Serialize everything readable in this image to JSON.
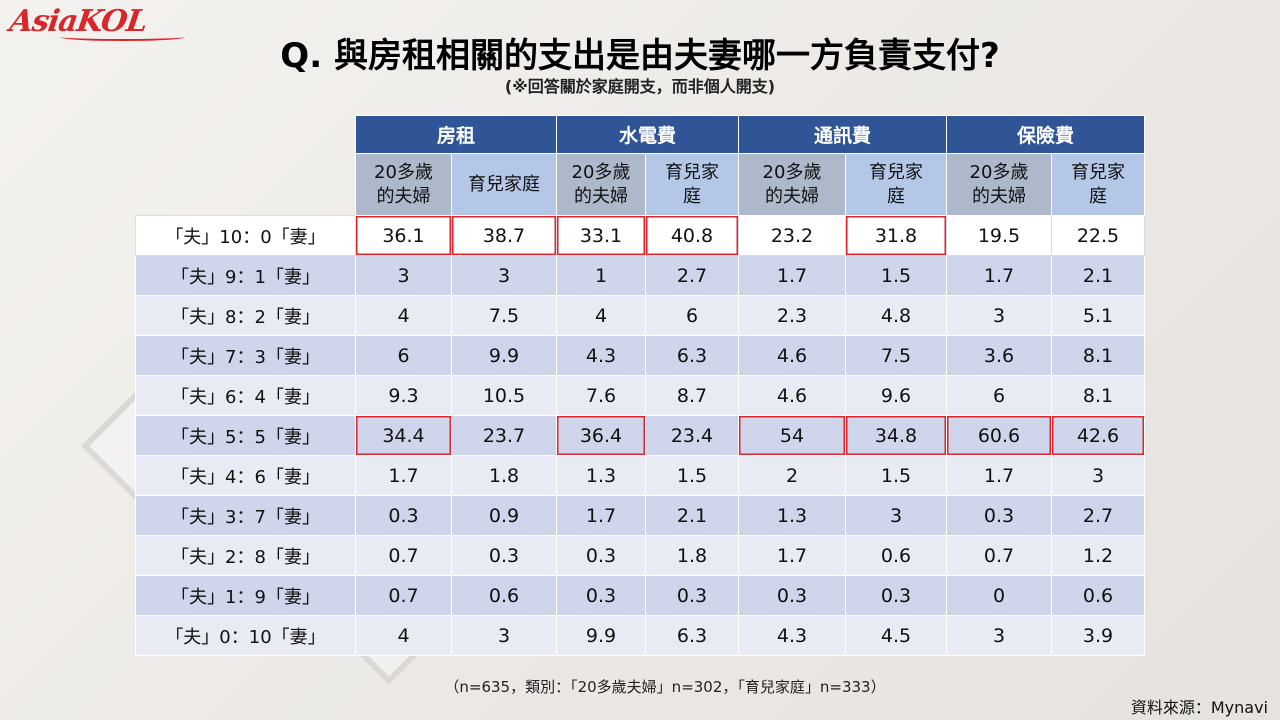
{
  "logo": "AsiaKOL",
  "title": "Q. 與房租相關的支出是由夫妻哪一方負責支付?",
  "subtitle": "(※回答關於家庭開支，而非個人開支)",
  "table": {
    "groups": [
      "房租",
      "水電費",
      "通訊費",
      "保險費"
    ],
    "subheaders": [
      "20多歲\n的夫婦",
      "育兒家庭"
    ],
    "subheaders_full": [
      [
        "20多歲",
        "的夫婦"
      ],
      [
        "育兒家庭"
      ],
      [
        "20多歲",
        "的夫婦"
      ],
      [
        "育兒家",
        "庭"
      ],
      [
        "20多歲",
        "的夫婦"
      ],
      [
        "育兒家",
        "庭"
      ],
      [
        "20多歲",
        "的夫婦"
      ],
      [
        "育兒家",
        "庭"
      ]
    ],
    "rows": [
      {
        "label": "「夫」10：0「妻」",
        "values": [
          "36.1",
          "38.7",
          "33.1",
          "40.8",
          "23.2",
          "31.8",
          "19.5",
          "22.5"
        ]
      },
      {
        "label": "「夫」9：1「妻」",
        "values": [
          "3",
          "3",
          "1",
          "2.7",
          "1.7",
          "1.5",
          "1.7",
          "2.1"
        ]
      },
      {
        "label": "「夫」8：2「妻」",
        "values": [
          "4",
          "7.5",
          "4",
          "6",
          "2.3",
          "4.8",
          "3",
          "5.1"
        ]
      },
      {
        "label": "「夫」7：3「妻」",
        "values": [
          "6",
          "9.9",
          "4.3",
          "6.3",
          "4.6",
          "7.5",
          "3.6",
          "8.1"
        ]
      },
      {
        "label": "「夫」6：4「妻」",
        "values": [
          "9.3",
          "10.5",
          "7.6",
          "8.7",
          "4.6",
          "9.6",
          "6",
          "8.1"
        ]
      },
      {
        "label": "「夫」5：5「妻」",
        "values": [
          "34.4",
          "23.7",
          "36.4",
          "23.4",
          "54",
          "34.8",
          "60.6",
          "42.6"
        ]
      },
      {
        "label": "「夫」4：6「妻」",
        "values": [
          "1.7",
          "1.8",
          "1.3",
          "1.5",
          "2",
          "1.5",
          "1.7",
          "3"
        ]
      },
      {
        "label": "「夫」3：7「妻」",
        "values": [
          "0.3",
          "0.9",
          "1.7",
          "2.1",
          "1.3",
          "3",
          "0.3",
          "2.7"
        ]
      },
      {
        "label": "「夫」2：8「妻」",
        "values": [
          "0.7",
          "0.3",
          "0.3",
          "1.8",
          "1.7",
          "0.6",
          "0.7",
          "1.2"
        ]
      },
      {
        "label": "「夫」1：9「妻」",
        "values": [
          "0.7",
          "0.6",
          "0.3",
          "0.3",
          "0.3",
          "0.3",
          "0",
          "0.6"
        ]
      },
      {
        "label": "「夫」0：10「妻」",
        "values": [
          "4",
          "3",
          "9.9",
          "6.3",
          "4.3",
          "4.5",
          "3",
          "3.9"
        ]
      }
    ],
    "highlight_color": "#e0242b",
    "header_color": "#2f5597"
  },
  "note": "（n=635，類別：「20多歲夫婦」n=302，「育兒家庭」n=333）",
  "source": "資料來源：Mynavi"
}
